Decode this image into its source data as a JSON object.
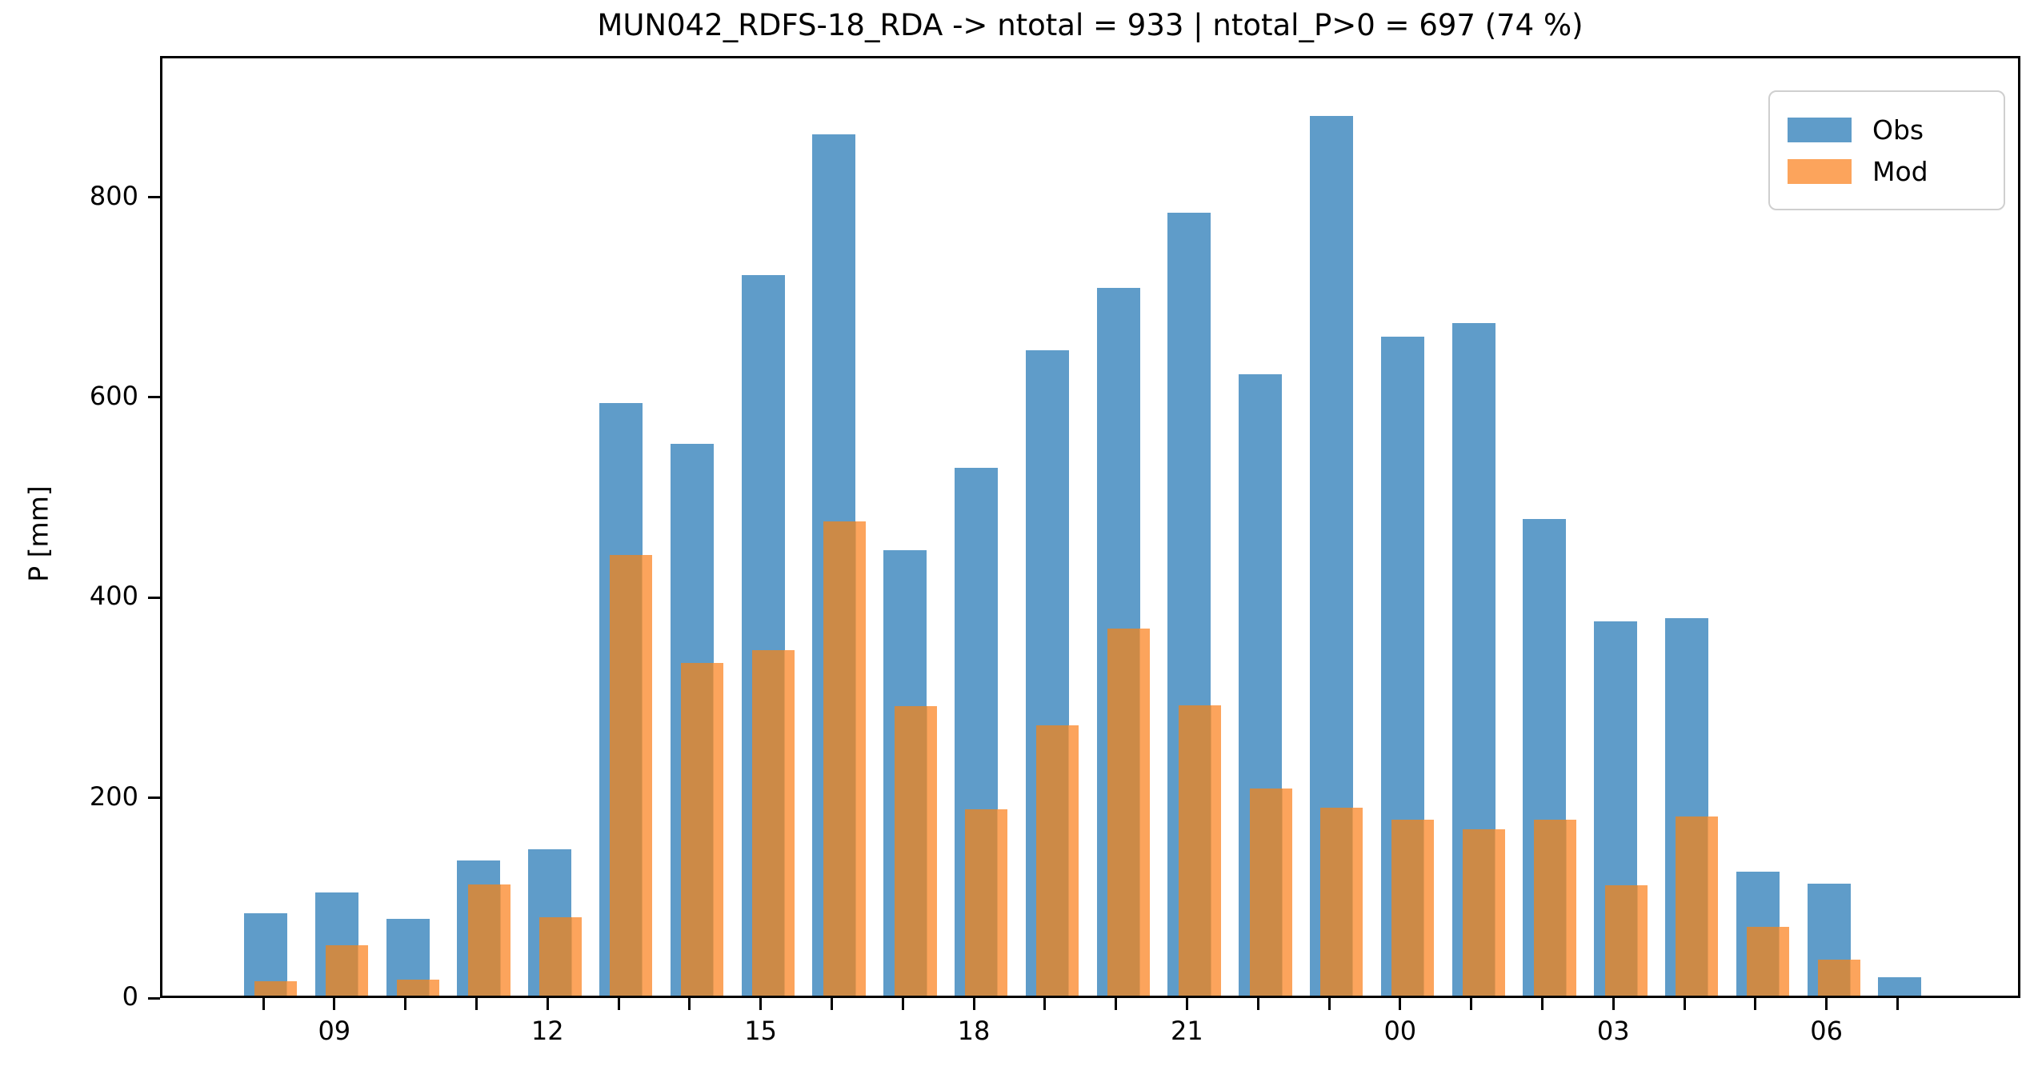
{
  "title": "MUN042_RDFS-18_RDA -> ntotal = 933 | ntotal_P>0 = 697 (74 %)",
  "ylabel": "P [mm]",
  "legend": {
    "items": [
      {
        "label": "Obs"
      },
      {
        "label": "Mod"
      }
    ]
  },
  "colors": {
    "obs_blue": "#5F9CC9",
    "mod_orange": "#FCA45C",
    "mod_overlap_brown": "#CC8A47",
    "axis": "#000000",
    "legend_border": "#cfcfcf"
  },
  "chart_data": {
    "type": "bar",
    "title": "MUN042_RDFS-18_RDA -> ntotal = 933 | ntotal_P>0 = 697 (74 %)",
    "xlabel": "",
    "ylabel": "P [mm]",
    "x_hours": [
      "08",
      "09",
      "10",
      "11",
      "12",
      "13",
      "14",
      "15",
      "16",
      "17",
      "18",
      "19",
      "20",
      "21",
      "22",
      "23",
      "00",
      "01",
      "02",
      "03",
      "04",
      "05",
      "06",
      "07"
    ],
    "xtick_labels": [
      "09",
      "12",
      "15",
      "18",
      "21",
      "00",
      "03",
      "06"
    ],
    "xtick_label_every_hours": 3,
    "yticks": [
      0,
      200,
      400,
      600,
      800
    ],
    "ylim": [
      0,
      941
    ],
    "grid": false,
    "legend_position": "upper right",
    "series": [
      {
        "name": "Obs",
        "color": "#5F9CC9",
        "values": [
          82,
          103,
          77,
          135,
          146,
          592,
          551,
          720,
          860,
          445,
          527,
          645,
          707,
          782,
          621,
          879,
          658,
          672,
          476,
          374,
          377,
          124,
          112,
          18
        ]
      },
      {
        "name": "Mod",
        "color": "#FCA45C",
        "overlap_color": "#CC8A47",
        "values": [
          14,
          50,
          16,
          111,
          78,
          440,
          332,
          345,
          474,
          289,
          186,
          270,
          367,
          290,
          207,
          188,
          176,
          166,
          176,
          110,
          179,
          69,
          36,
          0
        ]
      }
    ]
  }
}
